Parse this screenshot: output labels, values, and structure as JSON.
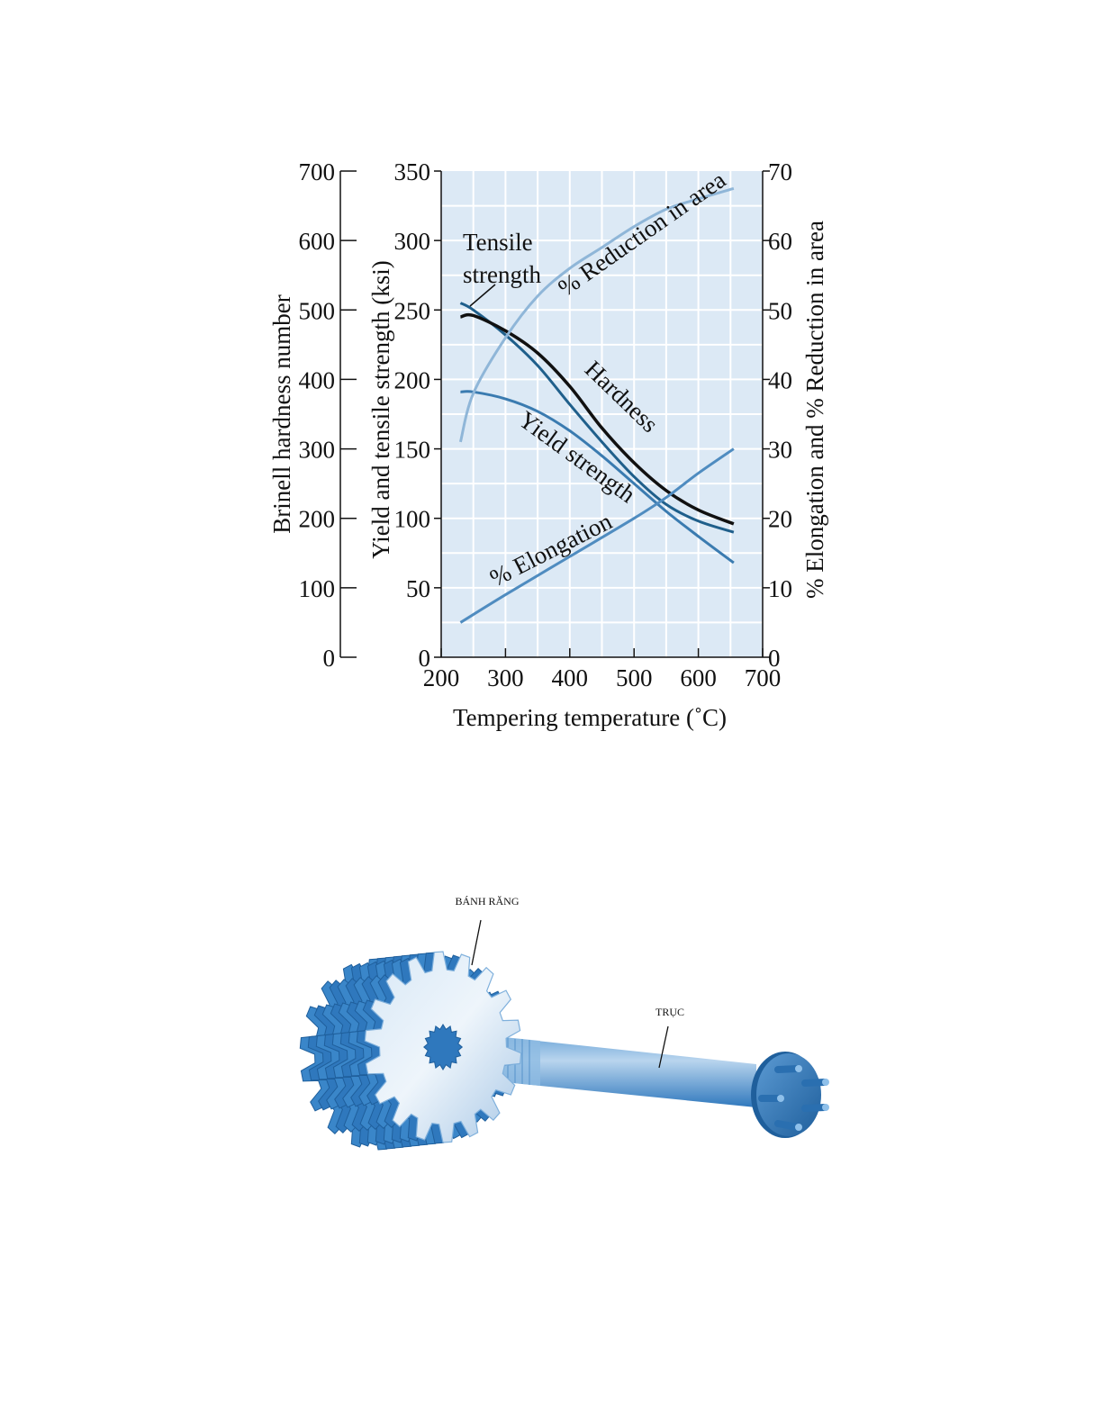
{
  "chart_data": {
    "type": "line",
    "xlabel": "Tempering temperature (˚C)",
    "x_ticks": [
      "200",
      "300",
      "400",
      "500",
      "600",
      "700"
    ],
    "xlim": [
      200,
      700
    ],
    "y_left_outer": {
      "label": "Brinell hardness number",
      "ticks": [
        "0",
        "100",
        "200",
        "300",
        "400",
        "500",
        "600",
        "700"
      ],
      "lim": [
        0,
        700
      ]
    },
    "y_left_inner": {
      "label": "Yield and tensile strength (ksi)",
      "ticks": [
        "0",
        "50",
        "100",
        "150",
        "200",
        "250",
        "300",
        "350"
      ],
      "lim": [
        0,
        350
      ]
    },
    "y_right": {
      "label": "% Elongation and % Reduction in area",
      "ticks": [
        "0",
        "10",
        "20",
        "30",
        "40",
        "50",
        "60",
        "70"
      ],
      "lim": [
        0,
        70
      ]
    },
    "grid": true,
    "series": [
      {
        "name": "Tensile strength",
        "axis": "ksi",
        "color": "#1f5f8b",
        "x": [
          230,
          250,
          300,
          350,
          400,
          450,
          500,
          550,
          600,
          655
        ],
        "y": [
          255,
          250,
          232,
          210,
          182,
          155,
          130,
          110,
          98,
          90
        ]
      },
      {
        "name": "Hardness",
        "axis": "brinell",
        "color": "#111111",
        "x": [
          230,
          250,
          300,
          350,
          400,
          450,
          500,
          550,
          600,
          655
        ],
        "y": [
          490,
          492,
          470,
          438,
          390,
          330,
          280,
          240,
          212,
          192
        ]
      },
      {
        "name": "Yield strength",
        "axis": "ksi",
        "color": "#3a7bb0",
        "x": [
          230,
          250,
          300,
          350,
          400,
          450,
          500,
          550,
          600,
          655
        ],
        "y": [
          191,
          191,
          186,
          177,
          163,
          145,
          125,
          105,
          87,
          68
        ]
      },
      {
        "name": "% Reduction in area",
        "axis": "percent",
        "color": "#8fb6d8",
        "x": [
          230,
          250,
          300,
          350,
          400,
          450,
          500,
          550,
          600,
          655
        ],
        "y": [
          31,
          38,
          46,
          52,
          56,
          59,
          62,
          64.5,
          66,
          67.5
        ]
      },
      {
        "name": "% Elongation",
        "axis": "percent",
        "color": "#4f8cc0",
        "x": [
          230,
          300,
          400,
          500,
          550,
          600,
          655
        ],
        "y": [
          5,
          9,
          14.5,
          20,
          23,
          26.5,
          30
        ]
      }
    ],
    "annotations": [
      "Tensile\nstrength",
      "Hardness",
      "Yield strength",
      "% Reduction in area",
      "% Elongation"
    ]
  },
  "figure": {
    "gear_label": "BÁNH RĂNG",
    "shaft_label": "TRỤC"
  }
}
